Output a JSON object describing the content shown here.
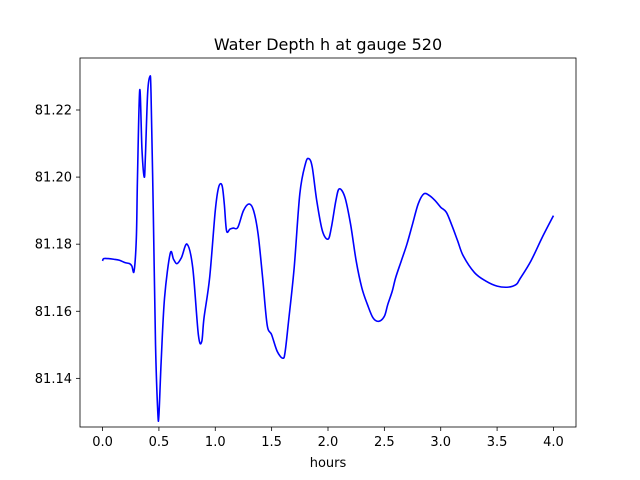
{
  "chart_data": {
    "type": "line",
    "title": "Water Depth h at gauge 520",
    "xlabel": "hours",
    "ylabel": "",
    "xlim": [
      -0.2,
      4.2
    ],
    "ylim": [
      81.1255,
      81.2355
    ],
    "xticks": [
      0.0,
      0.5,
      1.0,
      1.5,
      2.0,
      2.5,
      3.0,
      3.5,
      4.0
    ],
    "xtick_labels": [
      "0.0",
      "0.5",
      "1.0",
      "1.5",
      "2.0",
      "2.5",
      "3.0",
      "3.5",
      "4.0"
    ],
    "yticks": [
      81.14,
      81.16,
      81.18,
      81.2,
      81.22
    ],
    "ytick_labels": [
      "81.14",
      "81.16",
      "81.18",
      "81.20",
      "81.22"
    ],
    "grid": false,
    "series": [
      {
        "color": "#0000ff",
        "x": [
          0.0,
          0.01,
          0.05,
          0.1,
          0.15,
          0.2,
          0.24,
          0.26,
          0.28,
          0.3,
          0.31,
          0.33,
          0.35,
          0.37,
          0.38,
          0.4,
          0.42,
          0.43,
          0.45,
          0.47,
          0.49,
          0.5,
          0.52,
          0.55,
          0.6,
          0.63,
          0.66,
          0.7,
          0.75,
          0.8,
          0.85,
          0.88,
          0.9,
          0.95,
          1.0,
          1.03,
          1.06,
          1.08,
          1.1,
          1.13,
          1.16,
          1.2,
          1.25,
          1.3,
          1.34,
          1.38,
          1.42,
          1.46,
          1.5,
          1.55,
          1.6,
          1.62,
          1.65,
          1.7,
          1.75,
          1.8,
          1.83,
          1.86,
          1.9,
          1.95,
          2.0,
          2.03,
          2.07,
          2.1,
          2.15,
          2.2,
          2.25,
          2.3,
          2.35,
          2.4,
          2.45,
          2.5,
          2.53,
          2.57,
          2.6,
          2.65,
          2.7,
          2.75,
          2.8,
          2.85,
          2.9,
          2.95,
          3.0,
          3.05,
          3.1,
          3.15,
          3.2,
          3.3,
          3.4,
          3.5,
          3.6,
          3.67,
          3.7,
          3.8,
          3.9,
          4.0
        ],
        "y": [
          81.175,
          81.1757,
          81.1757,
          81.1755,
          81.1752,
          81.1745,
          81.1742,
          81.1735,
          81.172,
          81.182,
          81.2,
          81.226,
          81.208,
          81.2,
          81.206,
          81.225,
          81.23,
          81.225,
          81.19,
          81.15,
          81.13,
          81.129,
          81.145,
          81.164,
          81.1772,
          81.1755,
          81.1742,
          81.176,
          81.18,
          81.173,
          81.153,
          81.151,
          81.158,
          81.17,
          81.19,
          81.197,
          81.1975,
          81.192,
          81.184,
          81.1845,
          81.1848,
          81.185,
          81.19,
          81.192,
          81.19,
          81.183,
          81.17,
          81.156,
          81.153,
          81.148,
          81.146,
          81.148,
          81.157,
          81.173,
          81.195,
          81.204,
          81.2055,
          81.203,
          81.193,
          81.184,
          81.1815,
          81.185,
          81.193,
          81.1965,
          81.194,
          81.186,
          81.175,
          81.167,
          81.162,
          81.158,
          81.157,
          81.1585,
          81.162,
          81.166,
          81.17,
          81.175,
          81.18,
          81.186,
          81.192,
          81.195,
          81.1945,
          81.193,
          81.191,
          81.1895,
          81.1855,
          81.181,
          81.1765,
          81.1715,
          81.169,
          81.1675,
          81.1672,
          81.168,
          81.1695,
          81.175,
          81.182,
          81.1885
        ]
      }
    ]
  }
}
